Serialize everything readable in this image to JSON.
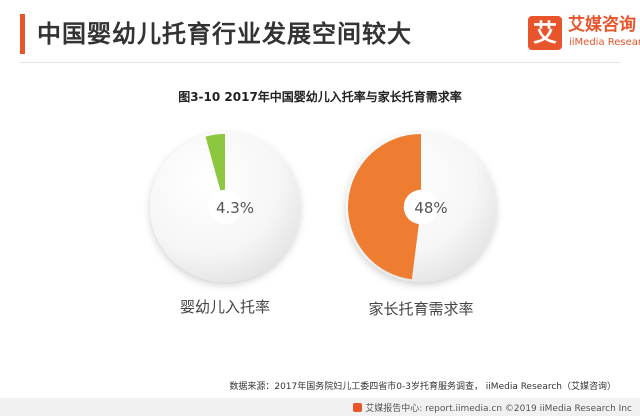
{
  "header": {
    "title": "中国婴幼儿托育行业发展空间较大",
    "accent_color": "#e8542b"
  },
  "logo": {
    "mark": "艾",
    "name_cn": "艾媒咨询",
    "name_en": "iiMedia Research"
  },
  "chart_data": {
    "type": "pie",
    "title": "图3-10 2017年中国婴幼儿入托率与家长托育需求率",
    "unit": "%",
    "series": [
      {
        "name": "婴幼儿入托率",
        "value": 4.3,
        "value_label": "4.3%",
        "color": "#8dc63f"
      },
      {
        "name": "家长托育需求率",
        "value": 48,
        "value_label": "48%",
        "color": "#ef7d31"
      }
    ]
  },
  "source": "数据来源：2017年国务院妇儿工委四省市0-3岁托育服务调查， iiMedia Research（艾媒咨询）",
  "footer": {
    "text": "艾媒报告中心: report.iimedia.cn ©2019  iiMedia Research Inc"
  }
}
